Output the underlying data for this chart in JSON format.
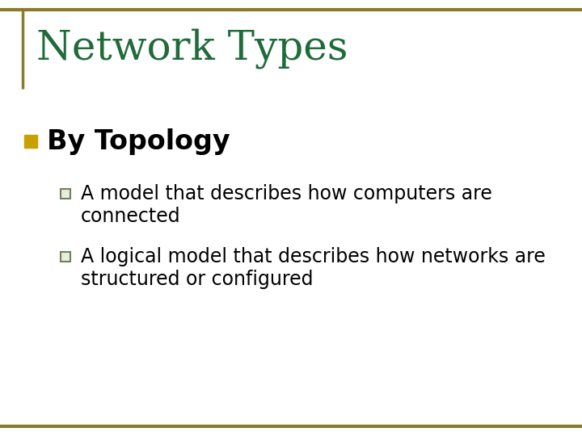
{
  "title": "Network Types",
  "title_color": "#1F6B3A",
  "title_fontsize": 36,
  "background_color": "#FFFFFF",
  "border_color": "#8B7A2A",
  "bullet1_text": "By Topology",
  "bullet1_color": "#000000",
  "bullet1_marker_color": "#C8A000",
  "bullet1_fontsize": 24,
  "sub_bullet1_line1": "A model that describes how computers are",
  "sub_bullet1_line2": "connected",
  "sub_bullet2_line1": "A logical model that describes how networks are",
  "sub_bullet2_line2": "structured or configured",
  "sub_bullet_fontsize": 17,
  "sub_bullet_color": "#000000",
  "sub_bullet_marker_color": "#708060",
  "sub_bullet_marker_face": "#E8EED8"
}
